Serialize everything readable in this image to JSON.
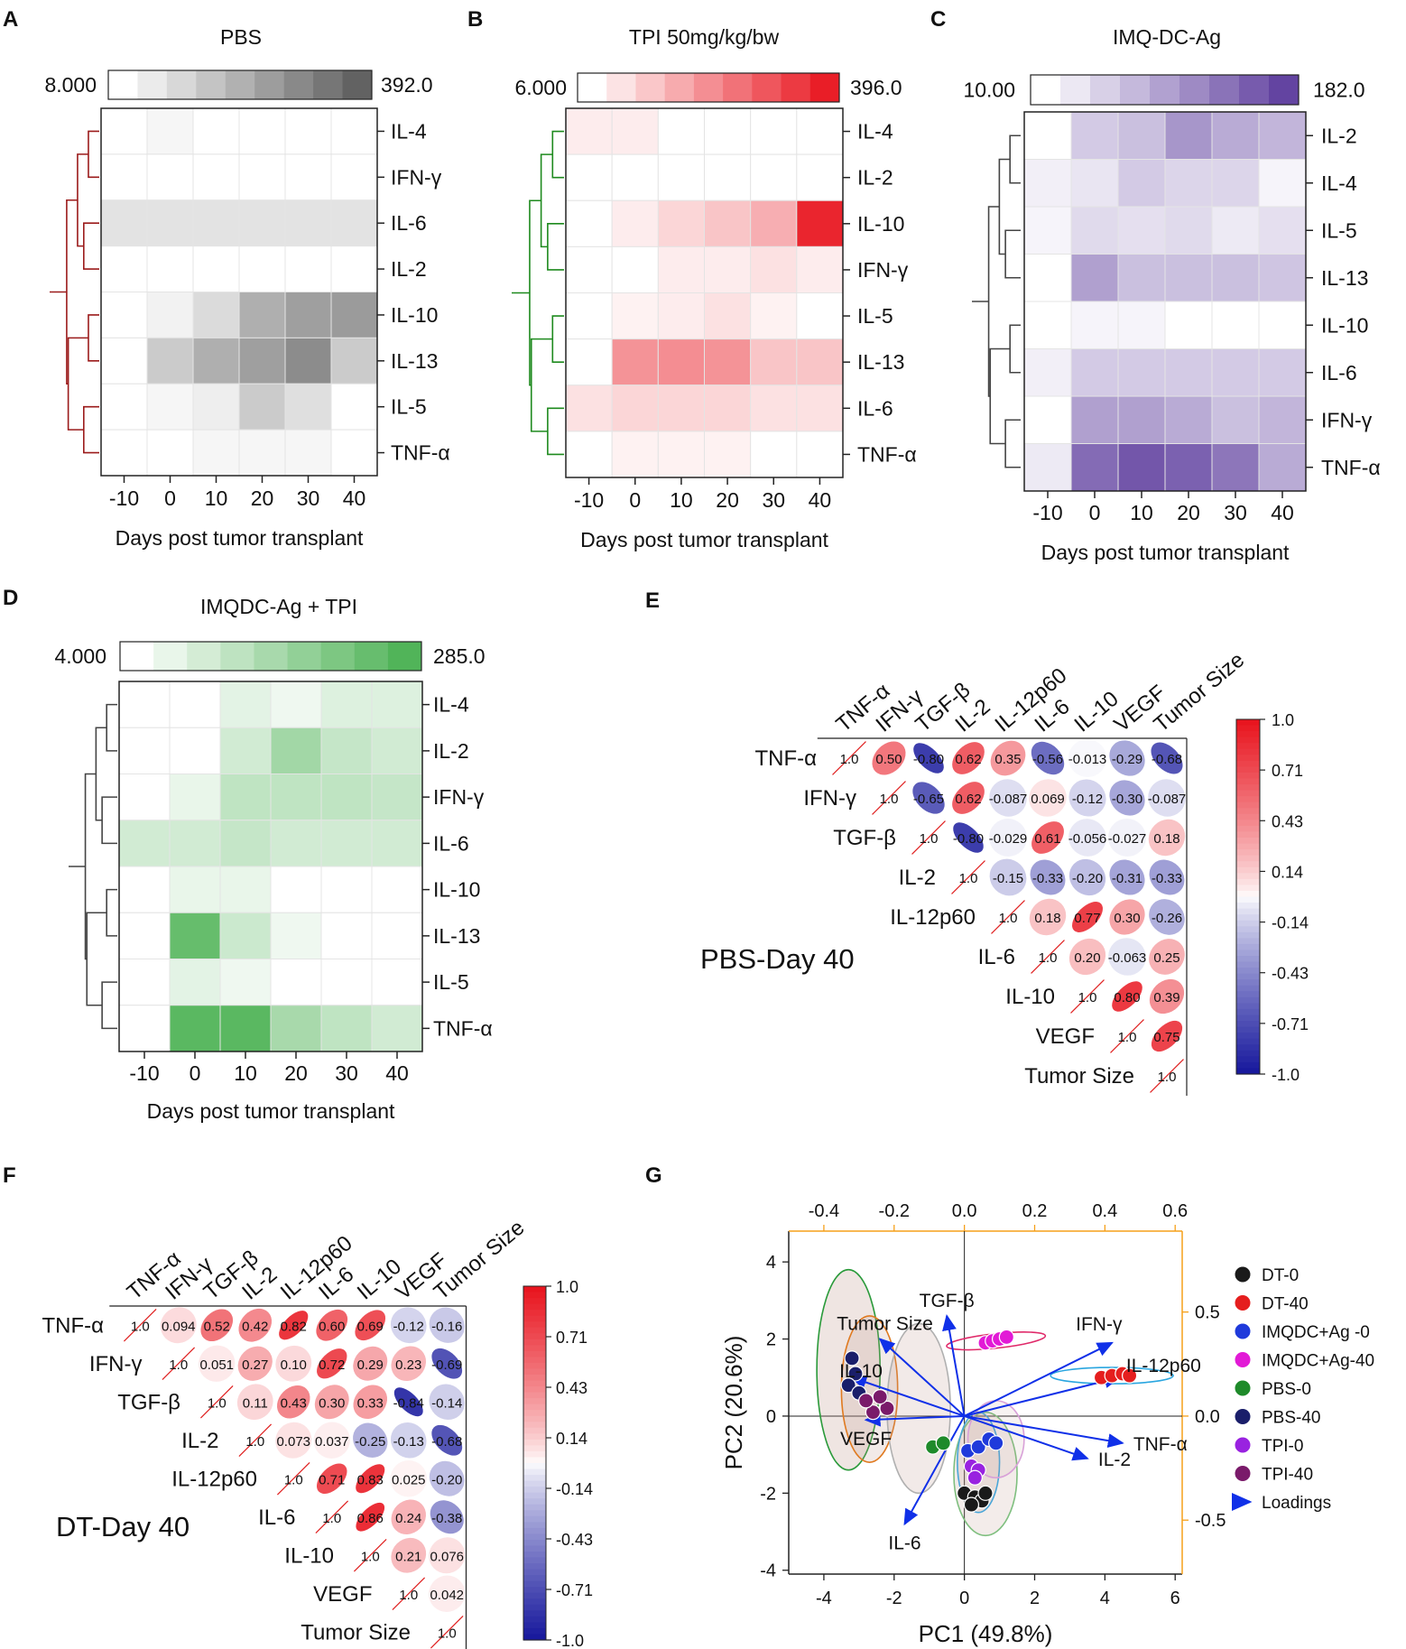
{
  "colors": {
    "pbs": "#5a5a5a",
    "tpi": "#e8121c",
    "imq": "#5b3a9c",
    "combo": "#48b050",
    "pos": "#e8121c",
    "neg": "#16179c",
    "accent": "#f6a01a"
  },
  "heatmaps": [
    {
      "panel": "A",
      "title": "PBS",
      "color": "#5a5a5a",
      "dendro_color": "#9b1b1b",
      "min": 8,
      "max": 392,
      "min_label": "8.000",
      "max_label": "392.0",
      "days": [
        "-10",
        "0",
        "10",
        "20",
        "30",
        "40"
      ],
      "xlabel": "Days post tumor transplant",
      "rows": [
        "IL-4",
        "IFN-γ",
        "IL-6",
        "IL-2",
        "IL-10",
        "IL-13",
        "IL-5",
        "TNF-α"
      ],
      "values": [
        [
          8,
          30,
          8,
          8,
          8,
          8
        ],
        [
          8,
          8,
          8,
          8,
          8,
          8
        ],
        [
          80,
          80,
          80,
          80,
          80,
          80
        ],
        [
          8,
          8,
          8,
          8,
          8,
          8
        ],
        [
          8,
          40,
          100,
          210,
          250,
          260
        ],
        [
          8,
          140,
          210,
          250,
          300,
          140
        ],
        [
          8,
          30,
          50,
          140,
          90,
          8
        ],
        [
          8,
          8,
          30,
          30,
          30,
          8
        ]
      ]
    },
    {
      "panel": "B",
      "title": "TPI 50mg/kg/bw",
      "color": "#e8121c",
      "dendro_color": "#1e8a1e",
      "min": 6,
      "max": 396,
      "min_label": "6.000",
      "max_label": "396.0",
      "days": [
        "-10",
        "0",
        "10",
        "20",
        "30",
        "40"
      ],
      "xlabel": "Days post tumor transplant",
      "rows": [
        "IL-4",
        "IL-2",
        "IL-10",
        "IFN-γ",
        "IL-5",
        "IL-13",
        "IL-6",
        "TNF-α"
      ],
      "values": [
        [
          40,
          40,
          6,
          6,
          6,
          6
        ],
        [
          6,
          6,
          6,
          6,
          6,
          6
        ],
        [
          6,
          40,
          80,
          110,
          150,
          396
        ],
        [
          6,
          6,
          40,
          40,
          60,
          40
        ],
        [
          6,
          30,
          40,
          60,
          30,
          6
        ],
        [
          6,
          200,
          210,
          200,
          110,
          110
        ],
        [
          60,
          80,
          80,
          80,
          60,
          60
        ],
        [
          6,
          30,
          30,
          30,
          6,
          6
        ]
      ]
    },
    {
      "panel": "C",
      "title": "IMQ-DC-Ag",
      "color": "#5b3a9c",
      "dendro_color": "#444444",
      "min": 10,
      "max": 182,
      "min_label": "10.00",
      "max_label": "182.0",
      "days": [
        "-10",
        "0",
        "10",
        "20",
        "30",
        "40"
      ],
      "xlabel": "Days post tumor transplant",
      "rows": [
        "IL-2",
        "IL-4",
        "IL-5",
        "IL-13",
        "IL-10",
        "IL-6",
        "IFN-γ",
        "TNF-α"
      ],
      "values": [
        [
          10,
          60,
          70,
          110,
          90,
          80
        ],
        [
          25,
          35,
          60,
          50,
          50,
          20
        ],
        [
          20,
          45,
          40,
          45,
          30,
          40
        ],
        [
          10,
          100,
          70,
          70,
          70,
          65
        ],
        [
          10,
          20,
          20,
          10,
          10,
          10
        ],
        [
          25,
          60,
          60,
          60,
          60,
          60
        ],
        [
          10,
          100,
          100,
          90,
          70,
          80
        ],
        [
          30,
          150,
          170,
          160,
          140,
          90
        ]
      ]
    },
    {
      "panel": "D",
      "title": "IMQDC-Ag + TPI",
      "color": "#48b050",
      "dendro_color": "#444444",
      "min": 4,
      "max": 285,
      "min_label": "4.000",
      "max_label": "285.0",
      "days": [
        "-10",
        "0",
        "10",
        "20",
        "30",
        "40"
      ],
      "xlabel": "Days post tumor transplant",
      "rows": [
        "IL-4",
        "IL-2",
        "IFN-γ",
        "IL-6",
        "IL-10",
        "IL-13",
        "IL-5",
        "TNF-α"
      ],
      "values": [
        [
          4,
          4,
          50,
          30,
          60,
          60
        ],
        [
          4,
          4,
          80,
          160,
          100,
          80
        ],
        [
          4,
          40,
          110,
          110,
          110,
          100
        ],
        [
          80,
          80,
          100,
          80,
          80,
          80
        ],
        [
          4,
          40,
          40,
          4,
          4,
          4
        ],
        [
          4,
          260,
          90,
          30,
          4,
          4
        ],
        [
          4,
          50,
          30,
          4,
          4,
          4
        ],
        [
          4,
          280,
          280,
          150,
          110,
          80
        ]
      ]
    }
  ],
  "correlations": [
    {
      "panel": "E",
      "label": "PBS-Day 40",
      "vars": [
        "TNF-α",
        "IFN-γ",
        "TGF-β",
        "IL-2",
        "IL-12p60",
        "IL-6",
        "IL-10",
        "VEGF",
        "Tumor Size"
      ],
      "rows": [
        [
          "1.0",
          "0.50",
          "-0.80",
          "0.62",
          "0.35",
          "-0.56",
          "-0.013",
          "-0.29",
          "-0.68"
        ],
        [
          "1.0",
          "-0.65",
          "0.62",
          "-0.087",
          "0.069",
          "-0.12",
          "-0.30",
          "-0.087"
        ],
        [
          "1.0",
          "-0.80",
          "-0.029",
          "0.61",
          "-0.056",
          "-0.027",
          "0.18"
        ],
        [
          "1.0",
          "-0.15",
          "-0.33",
          "-0.20",
          "-0.31",
          "-0.33"
        ],
        [
          "1.0",
          "0.18",
          "0.77",
          "0.30",
          "-0.26"
        ],
        [
          "1.0",
          "0.20",
          "-0.063",
          "0.25"
        ],
        [
          "1.0",
          "0.80",
          "0.39"
        ],
        [
          "1.0",
          "0.75"
        ],
        [
          "1.0"
        ]
      ]
    },
    {
      "panel": "F",
      "label": "DT-Day 40",
      "vars": [
        "TNF-α",
        "IFN-γ",
        "TGF-β",
        "IL-2",
        "IL-12p60",
        "IL-6",
        "IL-10",
        "VEGF",
        "Tumor Size"
      ],
      "rows": [
        [
          "1.0",
          "0.094",
          "0.52",
          "0.42",
          "0.82",
          "0.60",
          "0.69",
          "-0.12",
          "-0.16"
        ],
        [
          "1.0",
          "0.051",
          "0.27",
          "0.10",
          "0.72",
          "0.29",
          "0.23",
          "-0.69"
        ],
        [
          "1.0",
          "0.11",
          "0.43",
          "0.30",
          "0.33",
          "-0.84",
          "-0.14"
        ],
        [
          "1.0",
          "0.073",
          "0.037",
          "-0.25",
          "-0.13",
          "-0.68"
        ],
        [
          "1.0",
          "0.71",
          "0.83",
          "0.025",
          "-0.20"
        ],
        [
          "1.0",
          "0.86",
          "0.24",
          "-0.38"
        ],
        [
          "1.0",
          "0.21",
          "0.076"
        ],
        [
          "1.0",
          "0.042"
        ],
        [
          "1.0"
        ]
      ]
    }
  ],
  "corr_scale": {
    "ticks": [
      "1.0",
      "0.71",
      "0.43",
      "0.14",
      "-0.14",
      "-0.43",
      "-0.71",
      "-1.0"
    ]
  },
  "pca": {
    "panel": "G",
    "xlabel": "PC1 (49.8%)",
    "ylabel": "PC2 (20.6%)",
    "xlim": [
      -5,
      6.2
    ],
    "ylim": [
      -4.1,
      4.8
    ],
    "bottom_ticks": [
      "-4",
      "-2",
      "0",
      "2",
      "4",
      "6"
    ],
    "left_ticks": [
      "4",
      "2",
      "0",
      "-2",
      "-4"
    ],
    "top_ticks": [
      "-0.4",
      "-0.2",
      "0.0",
      "0.2",
      "0.4",
      "0.6"
    ],
    "right_ticks": [
      "0.5",
      "0.0",
      "-0.5"
    ],
    "groups": [
      {
        "name": "DT-0",
        "color": "#1a1a1a",
        "points": [
          [
            0.0,
            -2.0
          ],
          [
            0.3,
            -2.1
          ],
          [
            0.5,
            -2.2
          ],
          [
            0.2,
            -2.3
          ],
          [
            0.6,
            -2.0
          ]
        ]
      },
      {
        "name": "DT-40",
        "color": "#e51e1e",
        "points": [
          [
            3.9,
            1.0
          ],
          [
            4.2,
            1.05
          ],
          [
            4.5,
            1.1
          ],
          [
            4.7,
            1.05
          ]
        ]
      },
      {
        "name": "IMQDC+Ag -0",
        "color": "#1f3adb",
        "points": [
          [
            0.1,
            -0.9
          ],
          [
            0.4,
            -0.8
          ],
          [
            0.7,
            -0.6
          ],
          [
            0.9,
            -0.7
          ]
        ]
      },
      {
        "name": "IMQDC+Ag-40",
        "color": "#e21ad6",
        "points": [
          [
            0.6,
            1.9
          ],
          [
            0.8,
            1.95
          ],
          [
            1.0,
            2.0
          ],
          [
            1.2,
            2.05
          ]
        ]
      },
      {
        "name": "PBS-0",
        "color": "#1e8a2a",
        "points": [
          [
            -0.9,
            -0.8
          ],
          [
            -0.6,
            -0.7
          ]
        ]
      },
      {
        "name": "PBS-40",
        "color": "#1a1e6a",
        "points": [
          [
            -3.2,
            1.5
          ],
          [
            -3.1,
            1.1
          ],
          [
            -3.3,
            0.8
          ],
          [
            -3.0,
            0.6
          ]
        ]
      },
      {
        "name": "TPI-0",
        "color": "#9922e0",
        "points": [
          [
            0.2,
            -1.3
          ],
          [
            0.4,
            -1.4
          ],
          [
            0.3,
            -1.6
          ]
        ]
      },
      {
        "name": "TPI-40",
        "color": "#7a1a6a",
        "points": [
          [
            -2.6,
            0.1
          ],
          [
            -2.2,
            0.2
          ],
          [
            -2.8,
            0.4
          ],
          [
            -2.4,
            0.5
          ]
        ]
      }
    ],
    "loadings": [
      {
        "name": "TGF-β",
        "x": -0.5,
        "y": 2.6
      },
      {
        "name": "Tumor Size",
        "x": -2.4,
        "y": 2.0
      },
      {
        "name": "IL-10",
        "x": -3.2,
        "y": 1.0
      },
      {
        "name": "VEGF",
        "x": -2.8,
        "y": -0.1
      },
      {
        "name": "IL-6",
        "x": -1.7,
        "y": -2.8
      },
      {
        "name": "IFN-γ",
        "x": 4.2,
        "y": 1.9
      },
      {
        "name": "IL-12p60",
        "x": 4.4,
        "y": 1.0
      },
      {
        "name": "TNF-α",
        "x": 4.5,
        "y": -0.7
      },
      {
        "name": "IL-2",
        "x": 3.5,
        "y": -1.1
      }
    ],
    "legend_loadings": "Loadings"
  }
}
